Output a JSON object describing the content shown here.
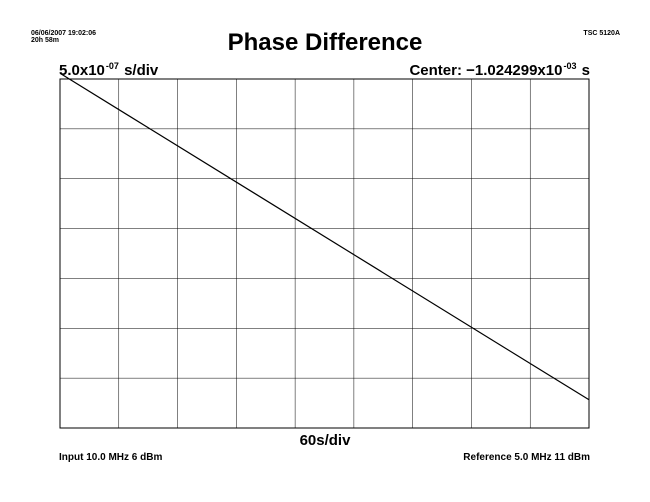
{
  "header": {
    "datetime": "06/06/2007 19:02:06",
    "elapsed": "20h 58m",
    "instrument": "TSC 5120A"
  },
  "chart_data": {
    "type": "line",
    "title": "Phase Difference",
    "y_scale": {
      "mantissa": "5.0x10",
      "exponent": "-07",
      "unit": " s/div"
    },
    "center": {
      "label": "Center: −1.024299x10",
      "exponent": "-03",
      "unit": " s"
    },
    "x_scale_label": "60s/div",
    "grid": true,
    "x_divisions": 9,
    "y_divisions": 7,
    "x_unit": "s",
    "y_unit": "s",
    "xlim": [
      0,
      540
    ],
    "ylim": [
      -0.0010242625,
      -0.0010243355
    ],
    "series": [
      {
        "x": [
          0,
          540
        ],
        "y": [
          -0.0010242613,
          -0.0010243296
        ]
      }
    ]
  },
  "footer": {
    "input": "Input 10.0 MHz 6 dBm",
    "reference": "Reference 5.0 MHz 11 dBm"
  }
}
